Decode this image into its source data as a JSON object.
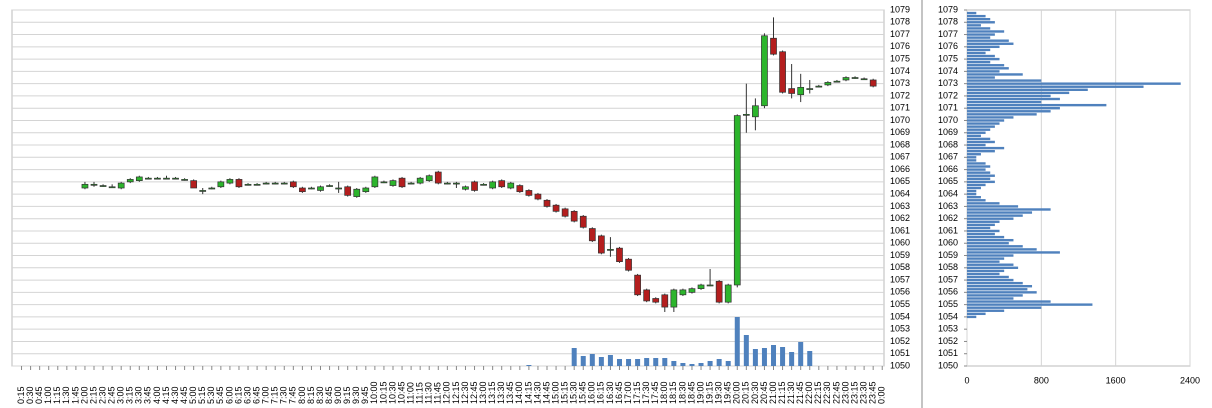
{
  "chart_data": [
    {
      "type": "candlestick",
      "categories": [
        "0:15",
        "0:30",
        "0:45",
        "1:00",
        "1:15",
        "1:30",
        "1:45",
        "2:00",
        "2:15",
        "2:30",
        "2:45",
        "3:00",
        "3:15",
        "3:30",
        "3:45",
        "4:00",
        "4:15",
        "4:30",
        "4:45",
        "5:00",
        "5:15",
        "5:30",
        "5:45",
        "6:00",
        "6:15",
        "6:30",
        "6:45",
        "7:00",
        "7:15",
        "7:30",
        "7:45",
        "8:00",
        "8:15",
        "8:30",
        "8:45",
        "9:00",
        "9:15",
        "9:30",
        "9:45",
        "10:00",
        "10:15",
        "10:30",
        "10:45",
        "11:00",
        "11:15",
        "11:30",
        "11:45",
        "12:00",
        "12:15",
        "12:30",
        "12:45",
        "13:00",
        "13:15",
        "13:30",
        "13:45",
        "14:00",
        "14:15",
        "14:30",
        "14:45",
        "15:00",
        "15:15",
        "15:30",
        "15:45",
        "16:00",
        "16:15",
        "16:30",
        "16:45",
        "17:00",
        "17:15",
        "17:30",
        "17:45",
        "18:00",
        "18:15",
        "18:30",
        "18:45",
        "19:00",
        "19:15",
        "19:30",
        "19:45",
        "20:00",
        "20:15",
        "20:30",
        "20:45",
        "21:00",
        "21:15",
        "21:30",
        "21:45",
        "22:00",
        "22:15",
        "22:30",
        "22:45",
        "23:00",
        "23:15",
        "23:30",
        "23:45",
        "0:00"
      ],
      "open": [
        null,
        null,
        null,
        null,
        null,
        null,
        null,
        1064.5,
        1064.8,
        1064.7,
        1064.6,
        1064.5,
        1065.0,
        1065.1,
        1065.3,
        1065.3,
        1065.3,
        1065.3,
        1065.2,
        1065.1,
        1064.3,
        1064.5,
        1064.6,
        1064.9,
        1065.2,
        1064.8,
        1064.8,
        1064.9,
        1064.9,
        1064.9,
        1065.0,
        1064.5,
        1064.5,
        1064.3,
        1064.7,
        1064.5,
        1064.6,
        1063.8,
        1064.2,
        1064.6,
        1065.0,
        1064.7,
        1065.3,
        1064.9,
        1064.9,
        1065.1,
        1065.8,
        1064.9,
        1064.9,
        1064.4,
        1065.0,
        1064.8,
        1064.5,
        1065.1,
        1064.5,
        1064.7,
        1064.3,
        1064.0,
        1063.5,
        1063.1,
        1062.8,
        1062.6,
        1062.2,
        1061.2,
        1060.6,
        1059.5,
        1059.6,
        1058.7,
        1057.4,
        1056.2,
        1055.5,
        1055.8,
        1054.8,
        1055.8,
        1056.0,
        1056.3,
        1056.6,
        1056.9,
        1055.2,
        1056.6,
        1070.5,
        1070.3,
        1071.2,
        1076.7,
        1075.6,
        1072.6,
        1072.1,
        1072.6,
        1072.8,
        1072.9,
        1073.2,
        1073.3,
        1073.5,
        1073.4,
        1073.3,
        null
      ],
      "high": [
        null,
        null,
        null,
        null,
        null,
        null,
        null,
        1065.0,
        1065.0,
        1064.8,
        1064.8,
        1065.0,
        1065.3,
        1065.5,
        1065.4,
        1065.4,
        1065.5,
        1065.4,
        1065.3,
        1065.2,
        1064.5,
        1064.6,
        1065.1,
        1065.3,
        1065.3,
        1064.9,
        1064.9,
        1065.0,
        1065.0,
        1065.0,
        1065.1,
        1064.6,
        1064.6,
        1064.7,
        1064.8,
        1065.0,
        1064.7,
        1064.5,
        1064.6,
        1065.5,
        1065.1,
        1065.2,
        1065.4,
        1065.0,
        1065.4,
        1065.6,
        1065.9,
        1065.0,
        1065.0,
        1064.7,
        1065.1,
        1064.9,
        1065.1,
        1065.2,
        1065.0,
        1064.8,
        1064.4,
        1064.1,
        1063.6,
        1063.2,
        1062.9,
        1062.7,
        1062.3,
        1061.3,
        1060.7,
        1060.5,
        1059.7,
        1058.8,
        1057.5,
        1056.3,
        1055.6,
        1055.9,
        1056.3,
        1056.3,
        1056.4,
        1056.7,
        1057.9,
        1057.0,
        1056.7,
        1070.5,
        1073.0,
        1071.8,
        1077.1,
        1078.4,
        1075.7,
        1074.6,
        1073.8,
        1073.3,
        1072.9,
        1073.2,
        1073.3,
        1073.6,
        1073.6,
        1073.5,
        1073.4,
        null
      ],
      "low": [
        null,
        null,
        null,
        null,
        null,
        null,
        null,
        1064.4,
        1064.6,
        1064.6,
        1064.5,
        1064.4,
        1064.9,
        1065.0,
        1065.2,
        1065.2,
        1065.2,
        1065.2,
        1065.1,
        1064.5,
        1064.0,
        1064.4,
        1064.5,
        1064.8,
        1064.5,
        1064.7,
        1064.7,
        1064.8,
        1064.8,
        1064.8,
        1064.5,
        1064.1,
        1064.4,
        1064.2,
        1064.6,
        1064.1,
        1063.8,
        1063.7,
        1064.1,
        1064.5,
        1064.9,
        1064.6,
        1064.5,
        1064.8,
        1064.8,
        1065.0,
        1064.8,
        1064.8,
        1064.5,
        1064.3,
        1064.2,
        1064.7,
        1064.4,
        1064.5,
        1064.4,
        1064.1,
        1063.8,
        1063.5,
        1062.9,
        1062.5,
        1062.1,
        1061.7,
        1061.2,
        1060.1,
        1059.1,
        1058.9,
        1058.4,
        1057.7,
        1055.7,
        1055.2,
        1055.1,
        1054.4,
        1054.4,
        1055.7,
        1055.9,
        1056.2,
        1056.5,
        1055.1,
        1055.1,
        1056.4,
        1069.0,
        1069.2,
        1071.0,
        1075.3,
        1072.2,
        1071.8,
        1071.5,
        1072.2,
        1072.7,
        1072.8,
        1073.1,
        1073.2,
        1073.4,
        1073.3,
        1072.7,
        null
      ],
      "close": [
        null,
        null,
        null,
        null,
        null,
        null,
        null,
        1064.8,
        1064.8,
        1064.7,
        1064.6,
        1064.9,
        1065.2,
        1065.4,
        1065.3,
        1065.3,
        1065.3,
        1065.3,
        1065.2,
        1064.5,
        1064.3,
        1064.5,
        1065.0,
        1065.2,
        1064.6,
        1064.8,
        1064.8,
        1064.9,
        1064.9,
        1064.9,
        1064.6,
        1064.2,
        1064.5,
        1064.6,
        1064.7,
        1064.5,
        1063.9,
        1064.4,
        1064.5,
        1065.4,
        1065.0,
        1065.1,
        1064.6,
        1064.9,
        1065.3,
        1065.5,
        1064.9,
        1064.9,
        1064.9,
        1064.6,
        1064.3,
        1064.8,
        1065.0,
        1064.6,
        1064.9,
        1064.2,
        1063.9,
        1063.6,
        1063.0,
        1062.6,
        1062.2,
        1061.8,
        1061.3,
        1060.2,
        1059.2,
        1059.5,
        1058.5,
        1057.8,
        1055.8,
        1055.3,
        1055.2,
        1054.8,
        1056.2,
        1056.2,
        1056.3,
        1056.6,
        1056.6,
        1055.2,
        1056.6,
        1070.4,
        1070.5,
        1071.2,
        1076.9,
        1075.4,
        1072.3,
        1072.2,
        1072.7,
        1072.6,
        1072.8,
        1073.1,
        1073.2,
        1073.5,
        1073.5,
        1073.4,
        1072.8,
        null
      ],
      "volume": [
        null,
        null,
        null,
        null,
        null,
        null,
        null,
        null,
        null,
        null,
        null,
        null,
        null,
        null,
        null,
        null,
        null,
        null,
        null,
        null,
        null,
        null,
        null,
        null,
        null,
        null,
        null,
        null,
        null,
        null,
        null,
        null,
        null,
        null,
        null,
        null,
        null,
        null,
        null,
        null,
        null,
        null,
        null,
        null,
        null,
        null,
        null,
        null,
        null,
        null,
        null,
        null,
        null,
        null,
        null,
        null,
        1,
        null,
        null,
        null,
        null,
        18,
        10,
        12,
        9,
        11,
        7,
        7,
        7,
        8,
        8,
        8,
        5,
        3,
        2,
        3,
        5,
        7,
        5,
        49,
        31,
        17,
        18,
        21,
        19,
        14,
        24,
        15,
        null,
        null,
        null,
        null,
        null,
        null,
        null,
        null
      ],
      "up_color": "#2cb52c",
      "down_color": "#b41e1e",
      "volume_color": "#4f81bd",
      "ylim": [
        1050,
        1079
      ],
      "yticks": [
        1050,
        1051,
        1052,
        1053,
        1054,
        1055,
        1056,
        1057,
        1058,
        1059,
        1060,
        1061,
        1062,
        1063,
        1064,
        1065,
        1066,
        1067,
        1068,
        1069,
        1070,
        1071,
        1072,
        1073,
        1074,
        1075,
        1076,
        1077,
        1078,
        1079
      ],
      "grid": true
    },
    {
      "type": "barh",
      "y": [
        1078.75,
        1078.5,
        1078.25,
        1078,
        1077.75,
        1077.5,
        1077.25,
        1077,
        1076.75,
        1076.5,
        1076.25,
        1076,
        1075.75,
        1075.5,
        1075.25,
        1075,
        1074.75,
        1074.5,
        1074.25,
        1074,
        1073.75,
        1073.5,
        1073.25,
        1073,
        1072.75,
        1072.5,
        1072.25,
        1072,
        1071.75,
        1071.5,
        1071.25,
        1071,
        1070.75,
        1070.5,
        1070.25,
        1070,
        1069.75,
        1069.5,
        1069.25,
        1069,
        1068.75,
        1068.5,
        1068.25,
        1068,
        1067.75,
        1067.5,
        1067.25,
        1067,
        1066.75,
        1066.5,
        1066.25,
        1066,
        1065.75,
        1065.5,
        1065.25,
        1065,
        1064.75,
        1064.5,
        1064.25,
        1064,
        1063.75,
        1063.5,
        1063.25,
        1063,
        1062.75,
        1062.5,
        1062.25,
        1062,
        1061.75,
        1061.5,
        1061.25,
        1061,
        1060.75,
        1060.5,
        1060.25,
        1060,
        1059.75,
        1059.5,
        1059.25,
        1059,
        1058.75,
        1058.5,
        1058.25,
        1058,
        1057.75,
        1057.5,
        1057.25,
        1057,
        1056.75,
        1056.5,
        1056.25,
        1056,
        1055.75,
        1055.5,
        1055.25,
        1055,
        1054.75,
        1054.5,
        1054.25,
        1054
      ],
      "values": [
        100,
        200,
        250,
        300,
        150,
        250,
        400,
        300,
        250,
        450,
        500,
        350,
        250,
        200,
        300,
        350,
        250,
        400,
        450,
        350,
        600,
        300,
        800,
        2300,
        1900,
        1300,
        1100,
        900,
        1000,
        800,
        1500,
        1000,
        900,
        750,
        500,
        400,
        350,
        300,
        250,
        200,
        150,
        250,
        300,
        200,
        400,
        300,
        150,
        100,
        100,
        200,
        250,
        200,
        250,
        300,
        250,
        300,
        200,
        150,
        100,
        100,
        150,
        200,
        350,
        550,
        900,
        700,
        600,
        500,
        350,
        300,
        250,
        350,
        300,
        400,
        500,
        450,
        600,
        750,
        1000,
        500,
        400,
        350,
        500,
        550,
        400,
        350,
        450,
        500,
        600,
        700,
        650,
        750,
        600,
        500,
        900,
        1350,
        800,
        400,
        200,
        100
      ],
      "color": "#4f81bd",
      "xlim": [
        0,
        2400
      ],
      "xticks": [
        0,
        800,
        1600,
        2400
      ],
      "ylim": [
        1050,
        1079
      ],
      "yticks": [
        1050,
        1051,
        1052,
        1053,
        1054,
        1055,
        1056,
        1057,
        1058,
        1059,
        1060,
        1061,
        1062,
        1063,
        1064,
        1065,
        1066,
        1067,
        1068,
        1069,
        1070,
        1071,
        1072,
        1073,
        1074,
        1075,
        1076,
        1077,
        1078,
        1079
      ],
      "grid": true
    }
  ]
}
